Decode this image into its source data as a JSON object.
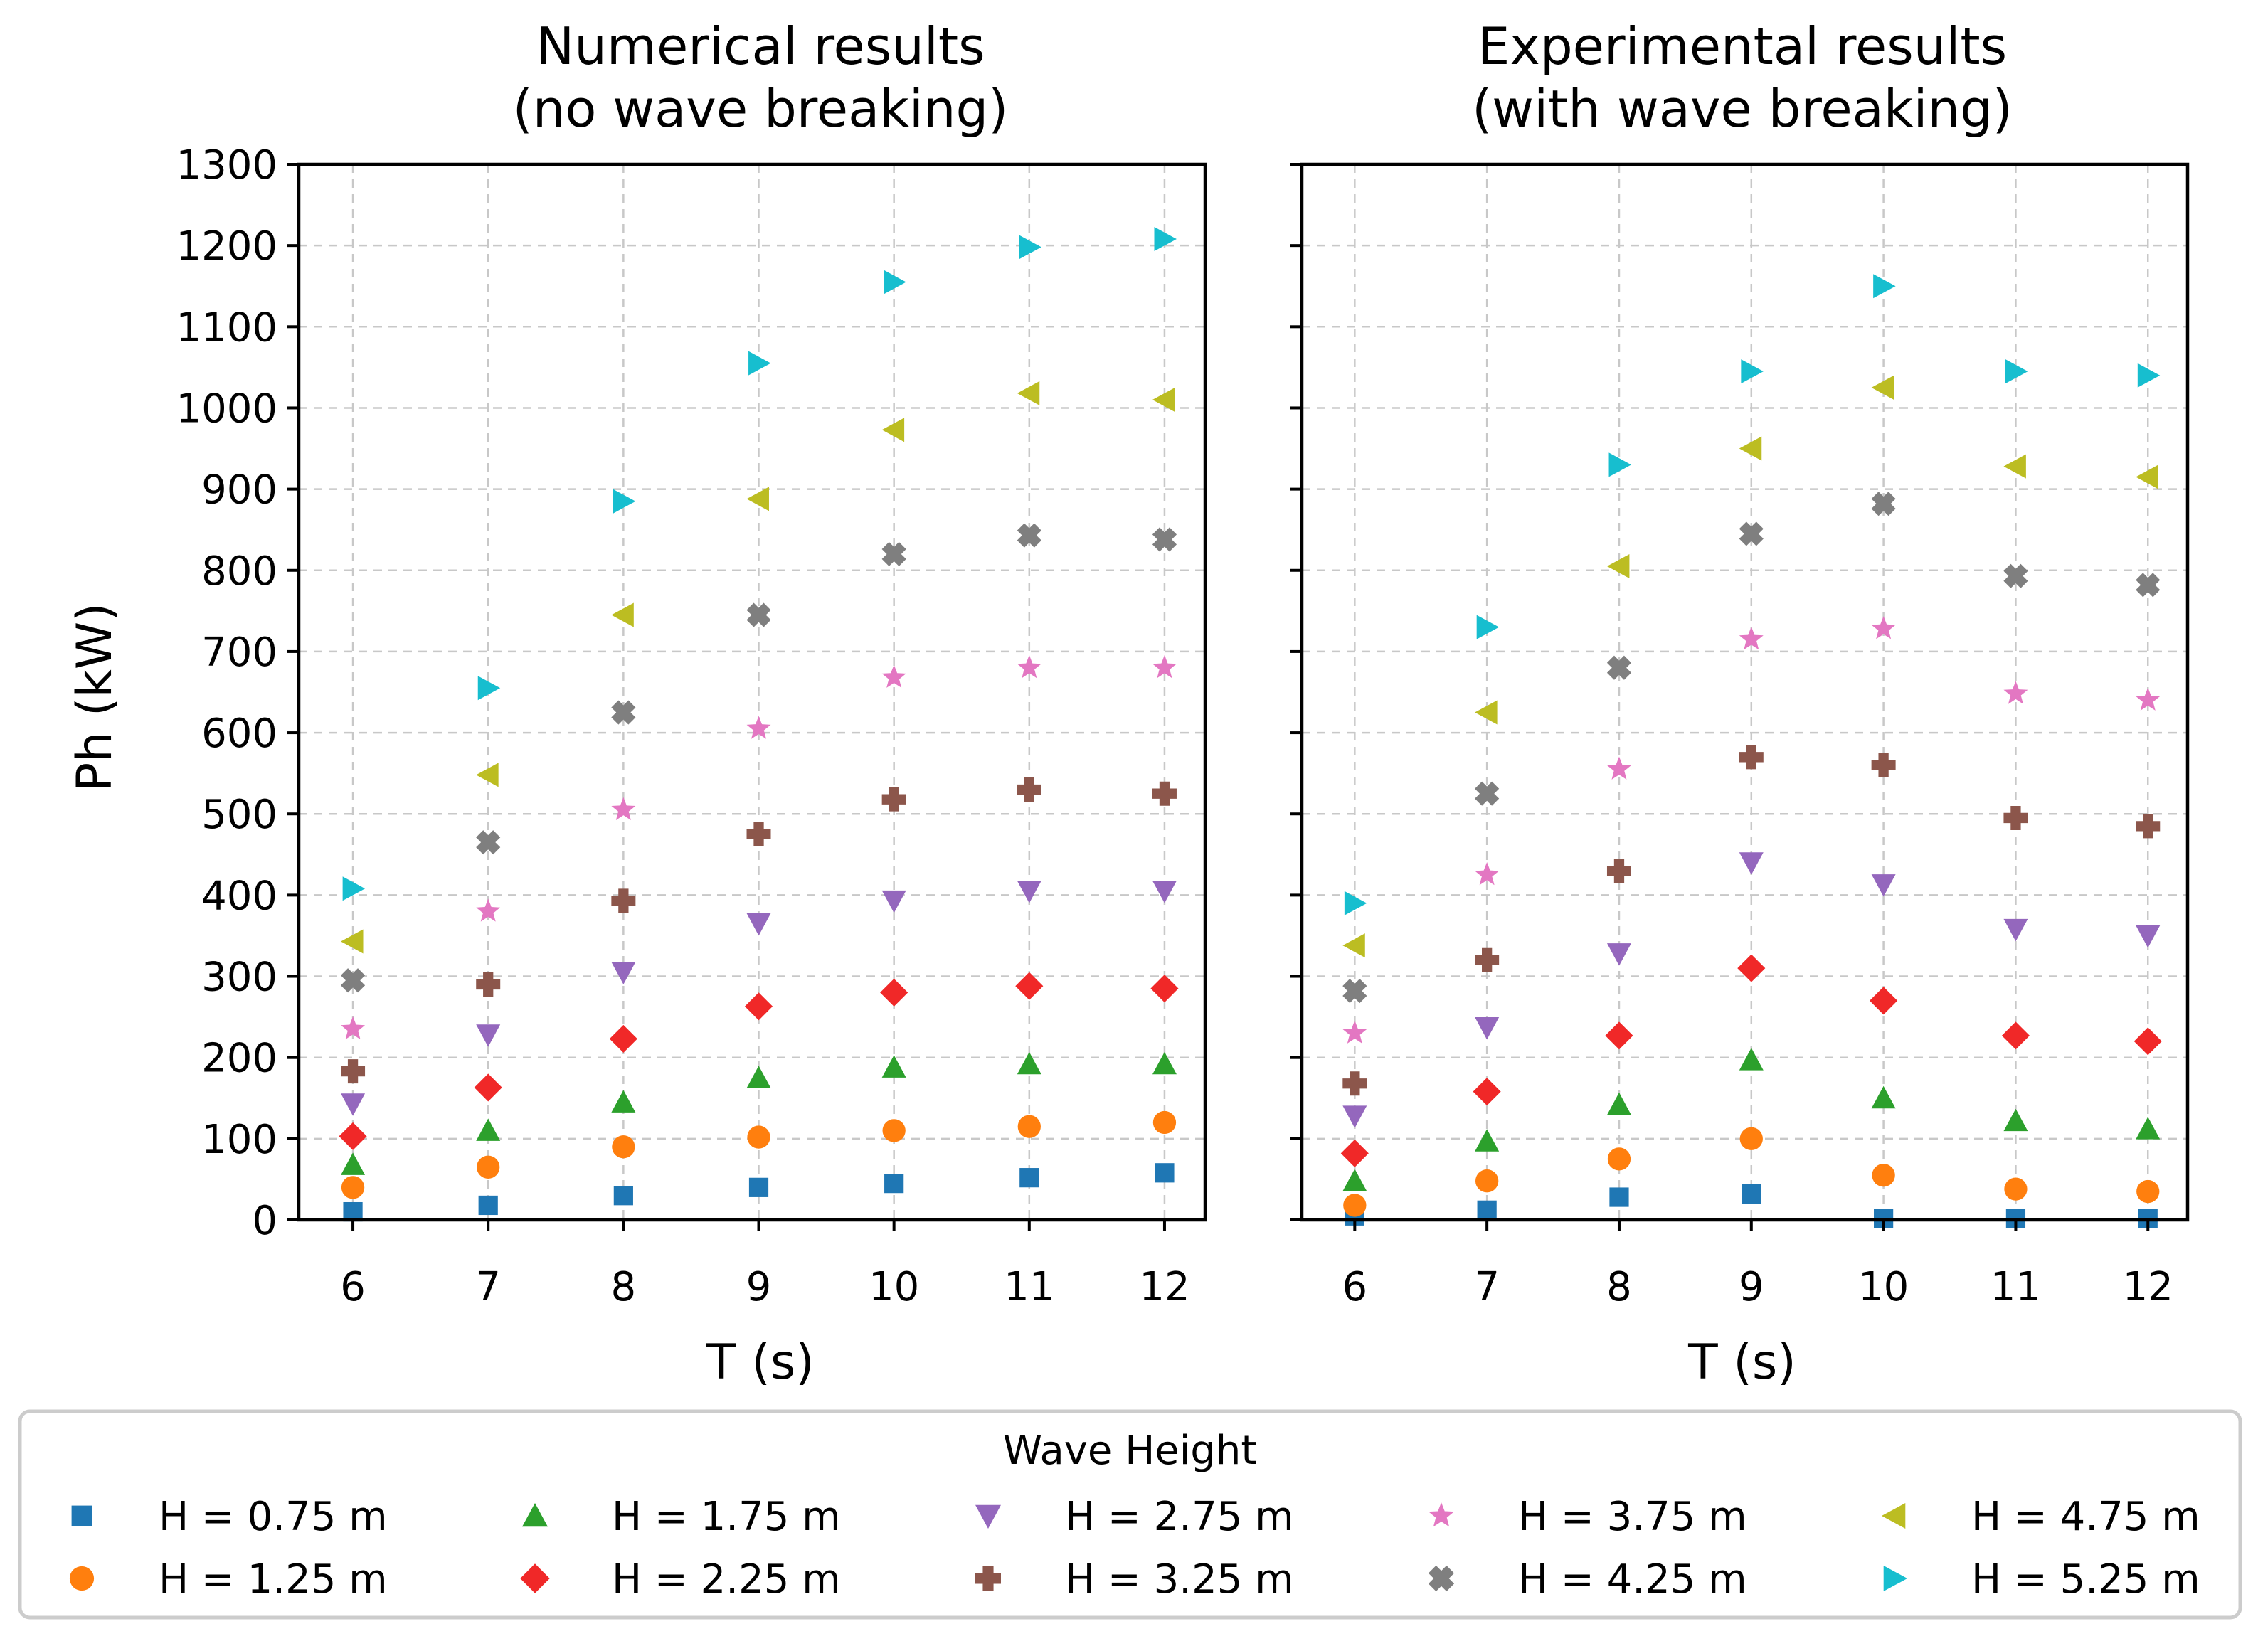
{
  "figure": {
    "legend": {
      "title": "Wave Height",
      "placement": "bottom, below both panels",
      "ncol": 5,
      "entries": [
        {
          "label": "H = 0.75 m",
          "marker": "square-icon",
          "color": "#1f77b4"
        },
        {
          "label": "H = 1.25 m",
          "marker": "circle-icon",
          "color": "#ff7f0e"
        },
        {
          "label": "H = 1.75 m",
          "marker": "triangle-up-icon",
          "color": "#2ca02c"
        },
        {
          "label": "H = 2.25 m",
          "marker": "diamond-icon",
          "color": "#f02828"
        },
        {
          "label": "H = 2.75 m",
          "marker": "triangle-down-icon",
          "color": "#9467bd"
        },
        {
          "label": "H = 3.25 m",
          "marker": "plus-filled-icon",
          "color": "#8c564b"
        },
        {
          "label": "H = 3.75 m",
          "marker": "star-icon",
          "color": "#e377c2"
        },
        {
          "label": "H = 4.25 m",
          "marker": "x-filled-icon",
          "color": "#7f7f7f"
        },
        {
          "label": "H = 4.75 m",
          "marker": "triangle-left-icon",
          "color": "#bcbd22"
        },
        {
          "label": "H = 5.25 m",
          "marker": "triangle-right-icon",
          "color": "#17becf"
        }
      ]
    }
  },
  "chart_data": [
    {
      "type": "scatter",
      "title_lines": [
        "Numerical results",
        "(no wave breaking)"
      ],
      "xlabel": "T (s)",
      "ylabel": "Ph (kW)",
      "x": [
        6,
        7,
        8,
        9,
        10,
        11,
        12
      ],
      "xticks": [
        "6",
        "7",
        "8",
        "9",
        "10",
        "11",
        "12"
      ],
      "xlim": [
        5.6,
        12.3
      ],
      "yticks": [
        "0",
        "100",
        "200",
        "300",
        "400",
        "500",
        "600",
        "700",
        "800",
        "900",
        "1000",
        "1100",
        "1200",
        "1300"
      ],
      "ylim": [
        0,
        1300
      ],
      "grid": true,
      "series": [
        {
          "name": "H = 0.75 m",
          "values": [
            10,
            18,
            30,
            40,
            45,
            52,
            58
          ]
        },
        {
          "name": "H = 1.25 m",
          "values": [
            40,
            65,
            90,
            102,
            110,
            115,
            120
          ]
        },
        {
          "name": "H = 1.75 m",
          "values": [
            68,
            110,
            145,
            175,
            188,
            192,
            192
          ]
        },
        {
          "name": "H = 2.25 m",
          "values": [
            103,
            163,
            223,
            263,
            280,
            288,
            285
          ]
        },
        {
          "name": "H = 2.75 m",
          "values": [
            143,
            228,
            305,
            365,
            393,
            405,
            405
          ]
        },
        {
          "name": "H = 3.25 m",
          "values": [
            183,
            290,
            393,
            475,
            518,
            530,
            525
          ]
        },
        {
          "name": "H = 3.75 m",
          "values": [
            235,
            380,
            505,
            605,
            668,
            680,
            680
          ]
        },
        {
          "name": "H = 4.25 m",
          "values": [
            295,
            465,
            625,
            745,
            820,
            843,
            838
          ]
        },
        {
          "name": "H = 4.75 m",
          "values": [
            343,
            548,
            745,
            888,
            973,
            1018,
            1010
          ]
        },
        {
          "name": "H = 5.25 m",
          "values": [
            408,
            655,
            885,
            1055,
            1155,
            1198,
            1208
          ]
        }
      ]
    },
    {
      "type": "scatter",
      "title_lines": [
        "Experimental results",
        "(with wave breaking)"
      ],
      "xlabel": "T (s)",
      "ylabel": "",
      "x": [
        6,
        7,
        8,
        9,
        10,
        11,
        12
      ],
      "xticks": [
        "6",
        "7",
        "8",
        "9",
        "10",
        "11",
        "12"
      ],
      "xlim": [
        5.6,
        12.3
      ],
      "yticks": [],
      "ylim": [
        0,
        1300
      ],
      "grid": true,
      "series": [
        {
          "name": "H = 0.75 m",
          "values": [
            5,
            12,
            28,
            32,
            2,
            2,
            2
          ]
        },
        {
          "name": "H = 1.25 m",
          "values": [
            18,
            48,
            75,
            100,
            55,
            38,
            35
          ]
        },
        {
          "name": "H = 1.75 m",
          "values": [
            48,
            97,
            142,
            197,
            150,
            122,
            112
          ]
        },
        {
          "name": "H = 2.25 m",
          "values": [
            82,
            158,
            227,
            310,
            270,
            227,
            220
          ]
        },
        {
          "name": "H = 2.75 m",
          "values": [
            128,
            237,
            328,
            440,
            413,
            358,
            350
          ]
        },
        {
          "name": "H = 3.25 m",
          "values": [
            168,
            320,
            430,
            570,
            560,
            495,
            485
          ]
        },
        {
          "name": "H = 3.75 m",
          "values": [
            230,
            425,
            555,
            715,
            728,
            648,
            640
          ]
        },
        {
          "name": "H = 4.25 m",
          "values": [
            282,
            525,
            680,
            845,
            882,
            793,
            782
          ]
        },
        {
          "name": "H = 4.75 m",
          "values": [
            338,
            625,
            805,
            950,
            1025,
            928,
            915
          ]
        },
        {
          "name": "H = 5.25 m",
          "values": [
            390,
            730,
            930,
            1045,
            1150,
            1045,
            1040
          ]
        }
      ]
    }
  ]
}
